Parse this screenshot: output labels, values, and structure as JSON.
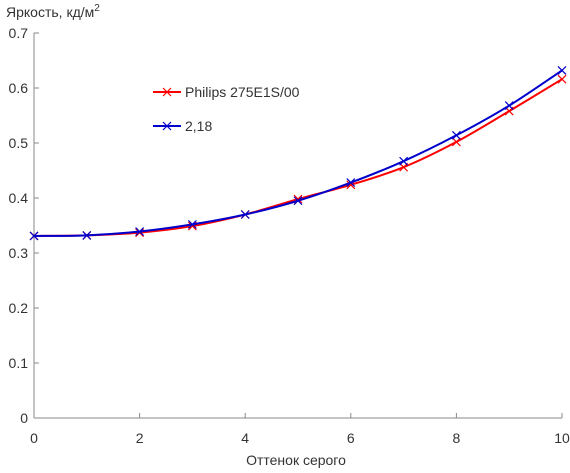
{
  "chart_data": {
    "type": "line",
    "ylabel": "Яркость, кд/м",
    "ylabel_superscript": "2",
    "xlabel": "Оттенок серого",
    "xlim": [
      0,
      10
    ],
    "ylim": [
      0,
      0.7
    ],
    "x_ticks": [
      "0",
      "2",
      "4",
      "6",
      "8",
      "10"
    ],
    "y_ticks": [
      "0",
      "0.1",
      "0.2",
      "0.3",
      "0.4",
      "0.5",
      "0.6",
      "0.7"
    ],
    "grid": false,
    "legend_position": "upper-left",
    "x": [
      0,
      1,
      2,
      3,
      4,
      5,
      6,
      7,
      8,
      9,
      10
    ],
    "series": [
      {
        "name": "Philips 275E1S/00",
        "color": "#ff0000",
        "values": [
          0.331,
          0.332,
          0.337,
          0.349,
          0.37,
          0.398,
          0.424,
          0.456,
          0.502,
          0.558,
          0.616
        ]
      },
      {
        "name": "2,18",
        "color": "#0000cc",
        "values": [
          0.331,
          0.332,
          0.339,
          0.352,
          0.37,
          0.395,
          0.428,
          0.467,
          0.514,
          0.568,
          0.632
        ]
      }
    ]
  }
}
